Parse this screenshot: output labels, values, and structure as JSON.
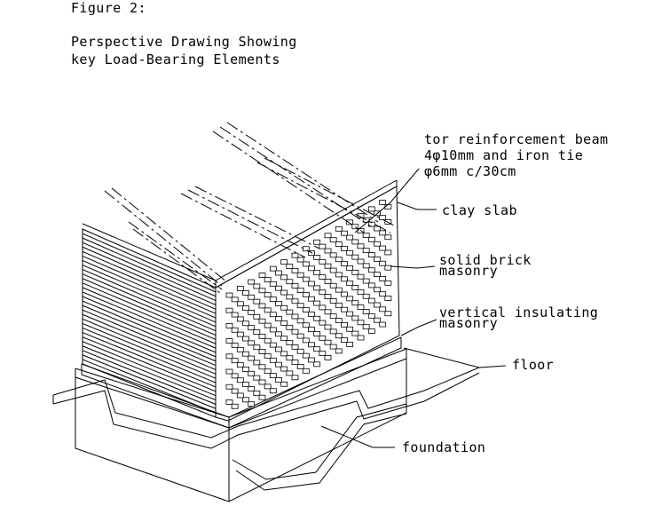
{
  "figure": {
    "label": "Figure 2:",
    "title_line1": "Perspective Drawing Showing",
    "title_line2": "key Load-Bearing Elements"
  },
  "labels": {
    "beam_line1": "tor reinforcement beam",
    "beam_line2": "4φ10mm and iron tie",
    "beam_line3": "φ6mm c/30cm",
    "clay_slab": "clay slab",
    "brick_line1": "solid brick",
    "brick_line2": "masonry",
    "insul_line1": "vertical insulating",
    "insul_line2": "masonry",
    "floor": "floor",
    "foundation": "foundation"
  }
}
